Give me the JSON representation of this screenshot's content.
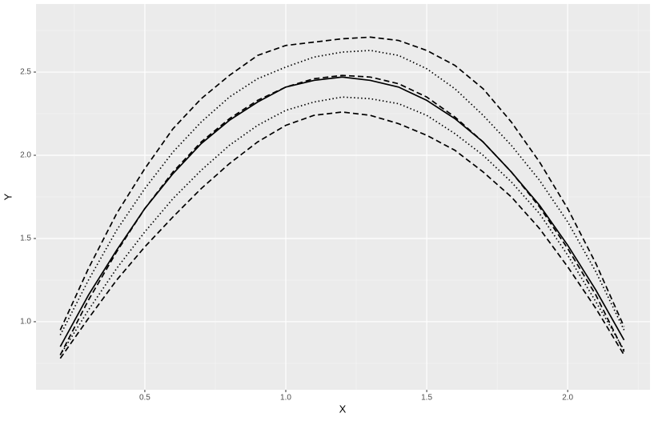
{
  "chart_data": {
    "type": "line",
    "x_label": "X",
    "y_label": "Y",
    "x": [
      0.2,
      0.3,
      0.4,
      0.5,
      0.6,
      0.7,
      0.8,
      0.9,
      1.0,
      1.1,
      1.2,
      1.3,
      1.4,
      1.5,
      1.6,
      1.7,
      1.8,
      1.9,
      2.0,
      2.1,
      2.2
    ],
    "series": [
      {
        "color": "#000000",
        "linestyle": "solid",
        "values": [
          0.85,
          1.16,
          1.43,
          1.68,
          1.89,
          2.07,
          2.21,
          2.32,
          2.41,
          2.45,
          2.47,
          2.45,
          2.41,
          2.33,
          2.22,
          2.08,
          1.9,
          1.7,
          1.46,
          1.19,
          0.89
        ]
      },
      {
        "color": "#000000",
        "linestyle": "dashed",
        "values": [
          0.8,
          1.13,
          1.42,
          1.68,
          1.9,
          2.08,
          2.22,
          2.33,
          2.41,
          2.46,
          2.48,
          2.47,
          2.43,
          2.35,
          2.23,
          2.08,
          1.9,
          1.69,
          1.44,
          1.16,
          0.82
        ]
      },
      {
        "color": "#000000",
        "linestyle": "dotted",
        "values": [
          0.92,
          1.25,
          1.55,
          1.8,
          2.02,
          2.2,
          2.35,
          2.46,
          2.53,
          2.59,
          2.62,
          2.63,
          2.6,
          2.52,
          2.4,
          2.24,
          2.06,
          1.85,
          1.6,
          1.3,
          0.95
        ]
      },
      {
        "color": "#000000",
        "linestyle": "dotted",
        "values": [
          0.8,
          1.07,
          1.32,
          1.54,
          1.74,
          1.91,
          2.06,
          2.18,
          2.27,
          2.32,
          2.35,
          2.34,
          2.31,
          2.24,
          2.13,
          2.0,
          1.84,
          1.65,
          1.4,
          1.12,
          0.83
        ]
      },
      {
        "color": "#000000",
        "linestyle": "dashed",
        "values": [
          0.95,
          1.32,
          1.65,
          1.92,
          2.16,
          2.34,
          2.48,
          2.6,
          2.66,
          2.68,
          2.7,
          2.71,
          2.69,
          2.63,
          2.54,
          2.4,
          2.2,
          1.96,
          1.68,
          1.35,
          0.97
        ]
      },
      {
        "color": "#000000",
        "linestyle": "dashed",
        "values": [
          0.78,
          1.02,
          1.25,
          1.45,
          1.63,
          1.8,
          1.95,
          2.08,
          2.18,
          2.24,
          2.26,
          2.24,
          2.19,
          2.12,
          2.03,
          1.9,
          1.75,
          1.56,
          1.33,
          1.08,
          0.8
        ]
      }
    ],
    "xlim": [
      0.114,
      2.292
    ],
    "ylim": [
      0.591,
      2.909
    ],
    "xticks": [
      0.5,
      {
        "value": 1,
        "label": "1.0"
      },
      1.5,
      {
        "value": 2,
        "label": "2.0"
      }
    ],
    "yticks": [
      {
        "value": 1,
        "label": "1.0"
      },
      1.5,
      {
        "value": 2,
        "label": "2.0"
      },
      2.5
    ],
    "xminor": [
      0.25,
      0.75,
      1.25,
      1.75,
      2.25
    ],
    "yminor": [
      0.75,
      1.25,
      1.75,
      2.25,
      2.75
    ],
    "grid": true
  }
}
